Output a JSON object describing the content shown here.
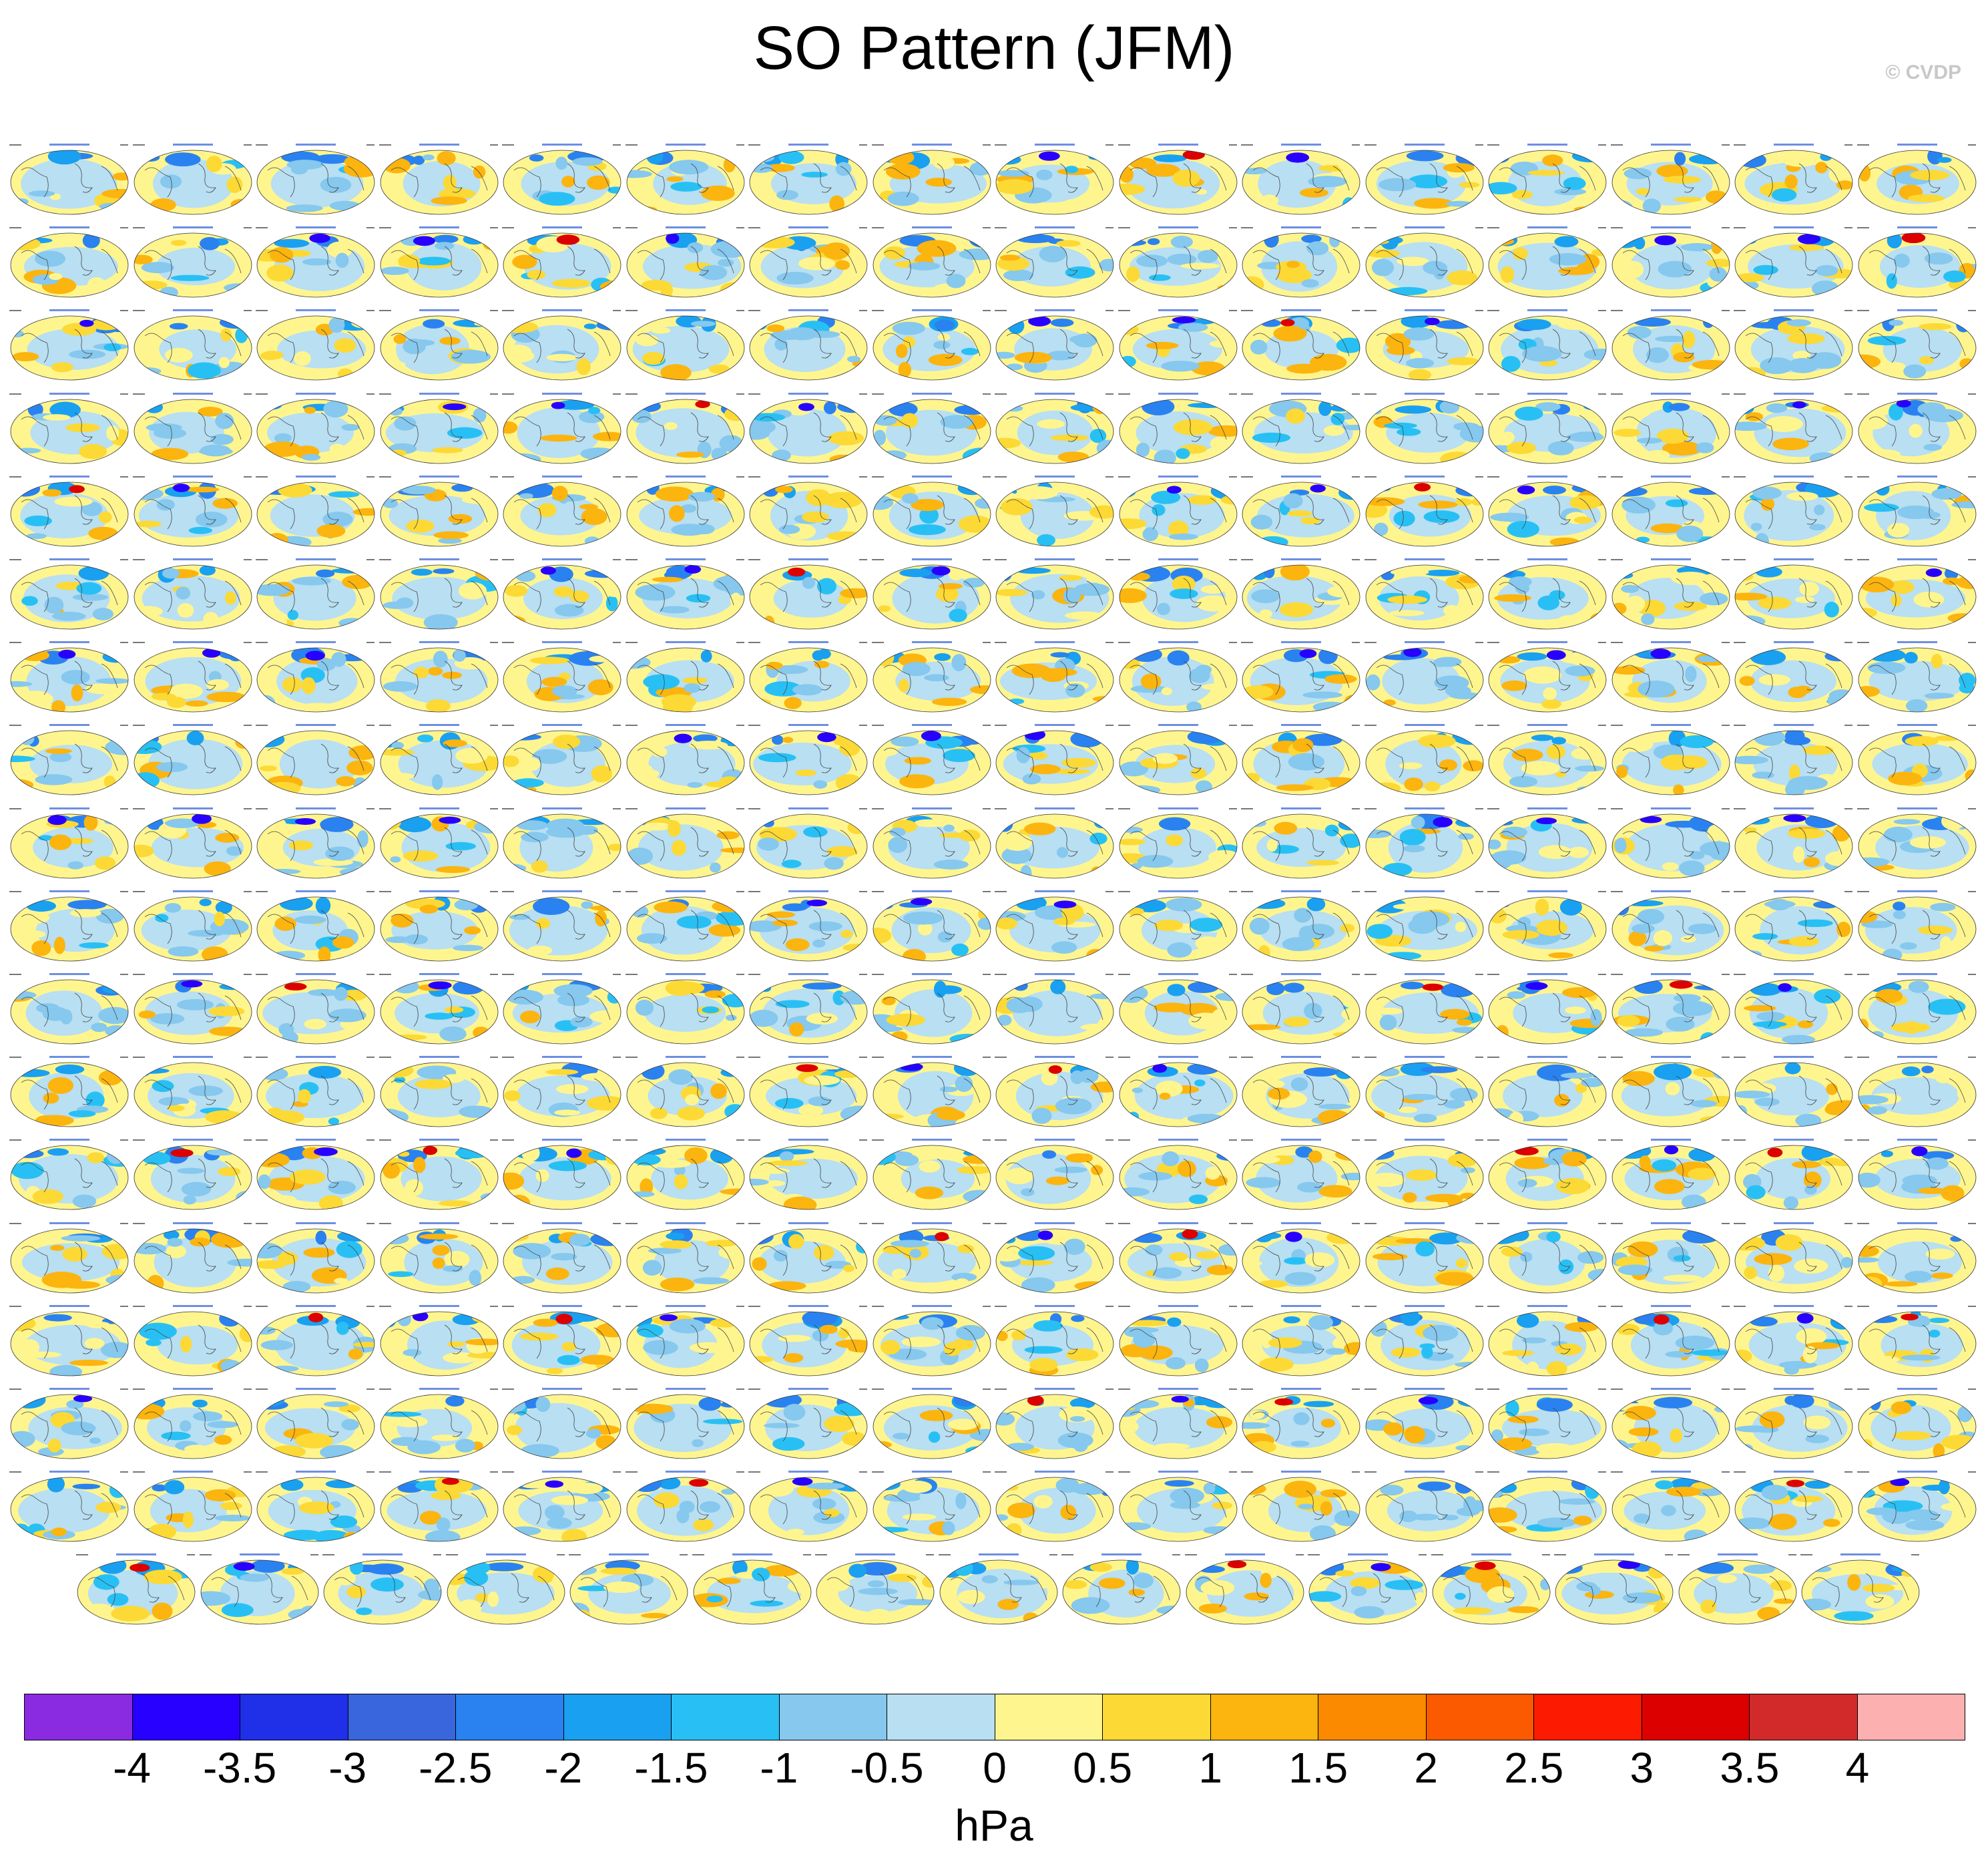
{
  "title": "SO Pattern (JFM)",
  "watermark": "© CVDP",
  "colorbar": {
    "colors": [
      "#8a2be2",
      "#2800ff",
      "#2030e8",
      "#3a66dd",
      "#2a82f0",
      "#1aa0f0",
      "#28c0f4",
      "#86c8ee",
      "#b8dff2",
      "#fff58f",
      "#fcd934",
      "#fcb40e",
      "#fc8a00",
      "#fc5a00",
      "#fc1a00",
      "#dc0000",
      "#d22a2a",
      "#fcb0b0"
    ],
    "ticks": [
      "-4",
      "-3.5",
      "-3",
      "-2.5",
      "-2",
      "-1.5",
      "-1",
      "-0.5",
      "0",
      "0.5",
      "1",
      "1.5",
      "2",
      "2.5",
      "3",
      "3.5",
      "4"
    ],
    "units": "hPa"
  },
  "panel_grid": {
    "rows": 18,
    "cols": 16,
    "last_row_count": 15,
    "total_panels": 287
  }
}
